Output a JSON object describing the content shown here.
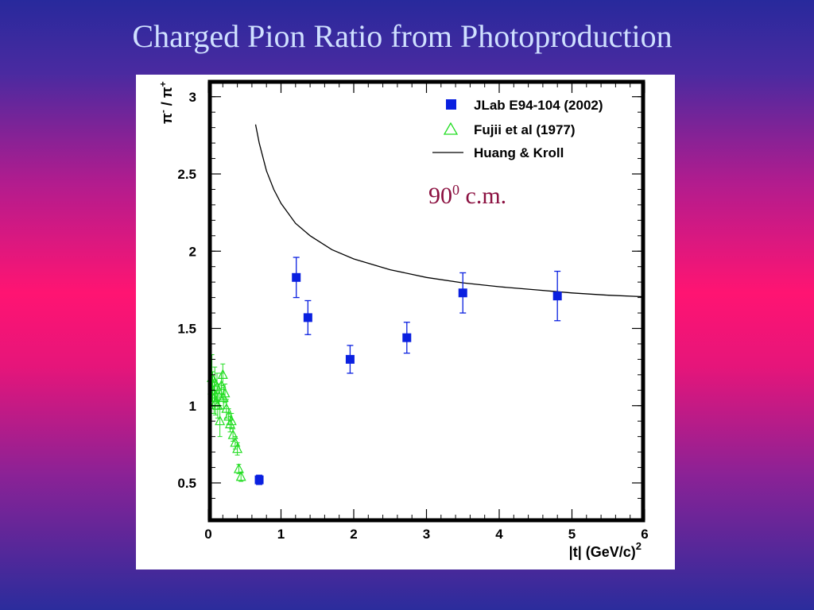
{
  "title": "Charged Pion Ratio from Photoproduction",
  "chart_data": {
    "type": "scatter",
    "xlabel": "|t| (GeV/c)",
    "xlabel_sup": "2",
    "ylabel_main": "π",
    "ylabel_sup1": "-",
    "ylabel_sep": " / ",
    "ylabel_sup2": "+",
    "xlim": [
      0,
      6
    ],
    "ylim": [
      0.3,
      3.1
    ],
    "xticks": [
      "0",
      "1",
      "2",
      "3",
      "4",
      "5",
      "6"
    ],
    "yticks": [
      "0.5",
      "1",
      "1.5",
      "2",
      "2.5",
      "3"
    ],
    "annotation_main": "90",
    "annotation_sup": "0",
    "annotation_tail": " c.m.",
    "legend_position": "top-right",
    "series": [
      {
        "name": "JLab E94-104 (2002)",
        "marker": "square",
        "color": "#0a20e0",
        "points": [
          {
            "x": 0.7,
            "y": 0.52,
            "err": 0.03
          },
          {
            "x": 1.21,
            "y": 1.83,
            "err": 0.13
          },
          {
            "x": 1.37,
            "y": 1.57,
            "err": 0.11
          },
          {
            "x": 1.95,
            "y": 1.3,
            "err": 0.09
          },
          {
            "x": 2.73,
            "y": 1.44,
            "err": 0.1
          },
          {
            "x": 3.5,
            "y": 1.73,
            "err": 0.13
          },
          {
            "x": 4.8,
            "y": 1.71,
            "err": 0.16
          }
        ]
      },
      {
        "name": "Fujii et al (1977)",
        "marker": "triangle",
        "color": "#22dd22",
        "points": [
          {
            "x": 0.05,
            "y": 1.18,
            "err": 0.15
          },
          {
            "x": 0.06,
            "y": 1.1,
            "err": 0.12
          },
          {
            "x": 0.08,
            "y": 1.05,
            "err": 0.1
          },
          {
            "x": 0.09,
            "y": 1.15,
            "err": 0.1
          },
          {
            "x": 0.1,
            "y": 1.02,
            "err": 0.08
          },
          {
            "x": 0.12,
            "y": 1.12,
            "err": 0.09
          },
          {
            "x": 0.13,
            "y": 1.0,
            "err": 0.08
          },
          {
            "x": 0.15,
            "y": 1.06,
            "err": 0.08
          },
          {
            "x": 0.16,
            "y": 0.9,
            "err": 0.1
          },
          {
            "x": 0.18,
            "y": 1.13,
            "err": 0.08
          },
          {
            "x": 0.2,
            "y": 1.2,
            "err": 0.07
          },
          {
            "x": 0.21,
            "y": 1.05,
            "err": 0.07
          },
          {
            "x": 0.23,
            "y": 1.08,
            "err": 0.06
          },
          {
            "x": 0.25,
            "y": 0.98,
            "err": 0.06
          },
          {
            "x": 0.28,
            "y": 0.93,
            "err": 0.05
          },
          {
            "x": 0.3,
            "y": 0.88,
            "err": 0.05
          },
          {
            "x": 0.32,
            "y": 0.9,
            "err": 0.05
          },
          {
            "x": 0.34,
            "y": 0.81,
            "err": 0.04
          },
          {
            "x": 0.37,
            "y": 0.76,
            "err": 0.04
          },
          {
            "x": 0.4,
            "y": 0.72,
            "err": 0.04
          },
          {
            "x": 0.42,
            "y": 0.59,
            "err": 0.03
          },
          {
            "x": 0.45,
            "y": 0.54,
            "err": 0.03
          }
        ]
      },
      {
        "name": "Huang & Kroll",
        "marker": "line",
        "color": "#000000",
        "points": [
          {
            "x": 0.65,
            "y": 2.82
          },
          {
            "x": 0.7,
            "y": 2.7
          },
          {
            "x": 0.8,
            "y": 2.52
          },
          {
            "x": 0.9,
            "y": 2.4
          },
          {
            "x": 1.0,
            "y": 2.31
          },
          {
            "x": 1.2,
            "y": 2.18
          },
          {
            "x": 1.4,
            "y": 2.1
          },
          {
            "x": 1.7,
            "y": 2.01
          },
          {
            "x": 2.0,
            "y": 1.95
          },
          {
            "x": 2.5,
            "y": 1.88
          },
          {
            "x": 3.0,
            "y": 1.83
          },
          {
            "x": 3.5,
            "y": 1.795
          },
          {
            "x": 4.0,
            "y": 1.77
          },
          {
            "x": 4.5,
            "y": 1.75
          },
          {
            "x": 5.0,
            "y": 1.73
          },
          {
            "x": 5.5,
            "y": 1.715
          },
          {
            "x": 6.0,
            "y": 1.705
          }
        ]
      }
    ]
  }
}
